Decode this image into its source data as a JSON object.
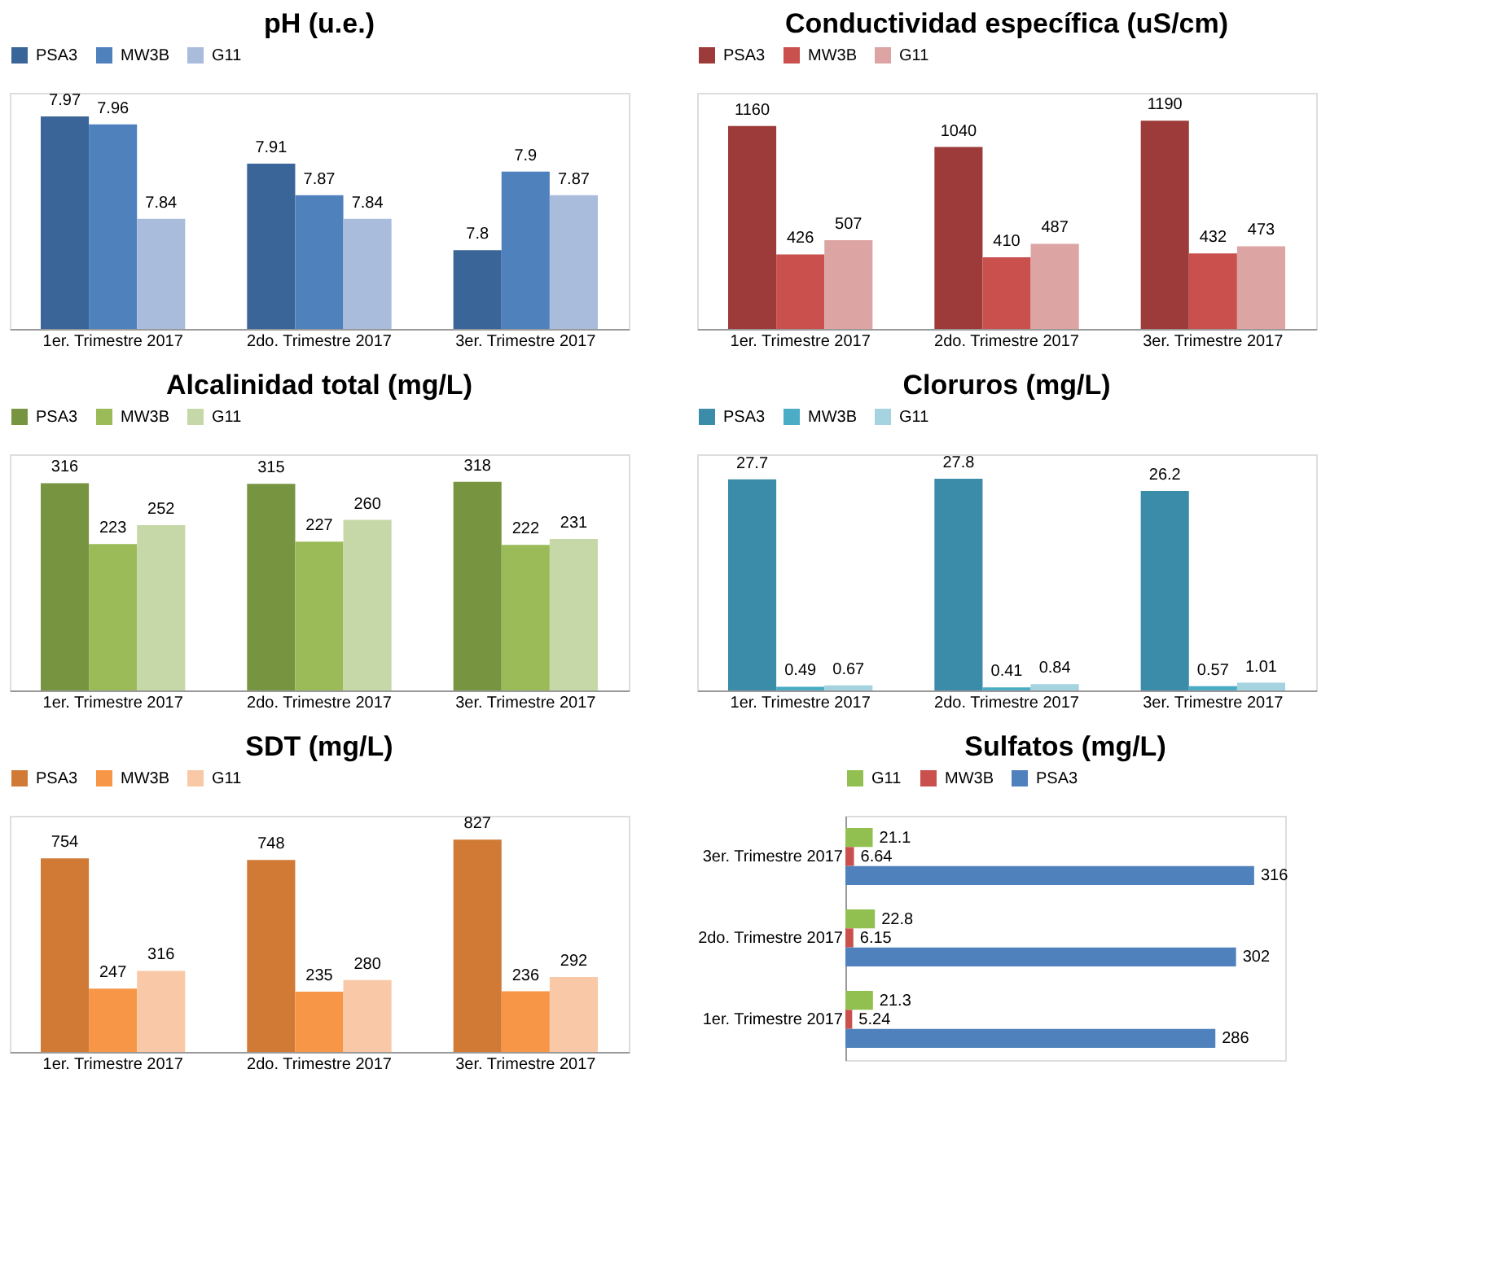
{
  "chart_data": [
    {
      "type": "bar",
      "title": "pH (u.e.)",
      "categories": [
        "1er. Trimestre 2017",
        "2do. Trimestre 2017",
        "3er. Trimestre 2017"
      ],
      "ylim": [
        7.7,
        8.0
      ],
      "tick_labels": "x",
      "grid": false,
      "legend": "top",
      "data_labels": true,
      "series": [
        {
          "name": "PSA3",
          "color": "#3a6598",
          "values": [
            7.97,
            7.91,
            7.8
          ]
        },
        {
          "name": "MW3B",
          "color": "#4f81bd",
          "values": [
            7.96,
            7.87,
            7.9
          ]
        },
        {
          "name": "G11",
          "color": "#a9bcdc",
          "values": [
            7.84,
            7.84,
            7.87
          ]
        }
      ]
    },
    {
      "type": "bar",
      "title": "Conductividad específica (uS/cm)",
      "categories": [
        "1er. Trimestre 2017",
        "2do. Trimestre 2017",
        "3er. Trimestre 2017"
      ],
      "ylim": [
        0,
        1350
      ],
      "tick_labels": "x",
      "grid": false,
      "legend": "top",
      "data_labels": true,
      "series": [
        {
          "name": "PSA3",
          "color": "#9c3b39",
          "values": [
            1160,
            1040,
            1190
          ]
        },
        {
          "name": "MW3B",
          "color": "#c9504d",
          "values": [
            426,
            410,
            432
          ]
        },
        {
          "name": "G11",
          "color": "#dca4a3",
          "values": [
            507,
            487,
            473
          ]
        }
      ]
    },
    {
      "type": "bar",
      "title": "Alcalinidad total (mg/L)",
      "categories": [
        "1er. Trimestre 2017",
        "2do. Trimestre 2017",
        "3er. Trimestre 2017"
      ],
      "ylim": [
        0,
        360
      ],
      "tick_labels": "x",
      "grid": false,
      "legend": "top",
      "data_labels": true,
      "series": [
        {
          "name": "PSA3",
          "color": "#779440",
          "values": [
            316,
            315,
            318
          ]
        },
        {
          "name": "MW3B",
          "color": "#9bbb59",
          "values": [
            223,
            227,
            222
          ]
        },
        {
          "name": "G11",
          "color": "#c6d8a8",
          "values": [
            252,
            260,
            231
          ]
        }
      ]
    },
    {
      "type": "bar",
      "title": "Cloruros (mg/L)",
      "categories": [
        "1er. Trimestre 2017",
        "2do. Trimestre 2017",
        "3er. Trimestre 2017"
      ],
      "ylim": [
        0,
        31
      ],
      "tick_labels": "x",
      "grid": false,
      "legend": "top",
      "data_labels": true,
      "series": [
        {
          "name": "PSA3",
          "color": "#3a8ca8",
          "values": [
            27.7,
            27.8,
            26.2
          ]
        },
        {
          "name": "MW3B",
          "color": "#4bacc6",
          "values": [
            0.49,
            0.41,
            0.57
          ]
        },
        {
          "name": "G11",
          "color": "#a5d3e0",
          "values": [
            0.67,
            0.84,
            1.01
          ]
        }
      ]
    },
    {
      "type": "bar",
      "title": "SDT  (mg/L)",
      "categories": [
        "1er. Trimestre 2017",
        "2do. Trimestre 2017",
        "3er. Trimestre 2017"
      ],
      "ylim": [
        0,
        920
      ],
      "tick_labels": "x",
      "grid": false,
      "legend": "top",
      "data_labels": true,
      "series": [
        {
          "name": "PSA3",
          "color": "#d07a36",
          "values": [
            754,
            748,
            827
          ]
        },
        {
          "name": "MW3B",
          "color": "#f79646",
          "values": [
            247,
            235,
            236
          ]
        },
        {
          "name": "G11",
          "color": "#f9c8a6",
          "values": [
            316,
            280,
            292
          ]
        }
      ]
    },
    {
      "type": "bar",
      "orientation": "horizontal",
      "title": "Sulfatos (mg/L)",
      "categories": [
        "3er. Trimestre 2017",
        "2do. Trimestre 2017",
        "1er. Trimestre 2017"
      ],
      "xlim": [
        0,
        340
      ],
      "tick_labels": "y",
      "grid": false,
      "legend": "top",
      "data_labels": true,
      "series": [
        {
          "name": "G11",
          "color": "#92c050",
          "values": [
            21.1,
            22.8,
            21.3
          ]
        },
        {
          "name": "MW3B",
          "color": "#c9504d",
          "values": [
            6.64,
            6.15,
            5.24
          ]
        },
        {
          "name": "PSA3",
          "color": "#4f81bd",
          "values": [
            316,
            302,
            286
          ]
        }
      ]
    }
  ]
}
